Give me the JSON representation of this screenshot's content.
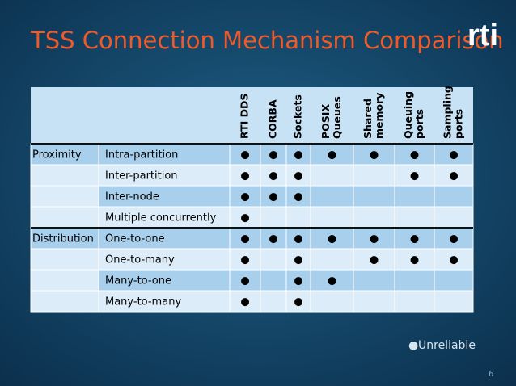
{
  "header": {
    "title": "TSS Connection Mechanism Comparison",
    "logo": "rti"
  },
  "table": {
    "columns": [
      [
        "RTI DDS"
      ],
      [
        "CORBA"
      ],
      [
        "Sockets"
      ],
      [
        "POSIX",
        "Queues"
      ],
      [
        "Shared",
        "memory"
      ],
      [
        "Queuing",
        "ports"
      ],
      [
        "Sampling",
        "ports"
      ]
    ],
    "rows": [
      {
        "group": "Proximity",
        "item": "Intra-partition",
        "cells": [
          "●",
          "●",
          "●",
          "●",
          "●",
          "●",
          "●"
        ]
      },
      {
        "group": null,
        "item": "Inter-partition",
        "cells": [
          "●",
          "●",
          "●",
          null,
          null,
          "●",
          "●"
        ]
      },
      {
        "group": null,
        "item": "Inter-node",
        "cells": [
          "●",
          "●",
          "●",
          null,
          null,
          null,
          null
        ]
      },
      {
        "group": null,
        "item": "Multiple concurrently",
        "cells": [
          "●",
          null,
          null,
          null,
          null,
          null,
          null
        ]
      },
      {
        "group": "Distribution",
        "item": "One-to-one",
        "cells": [
          "●",
          "●",
          "●",
          "●",
          "●",
          "●",
          "●"
        ]
      },
      {
        "group": null,
        "item": "One-to-many",
        "cells": [
          "●",
          null,
          {
            "text": "●",
            "unreliable": true
          },
          null,
          "●",
          "●",
          "●"
        ]
      },
      {
        "group": null,
        "item": "Many-to-one",
        "cells": [
          "●",
          null,
          {
            "text": "●",
            "unreliable": true
          },
          "●",
          null,
          null,
          null
        ]
      },
      {
        "group": null,
        "item": "Many-to-many",
        "cells": [
          "●",
          null,
          {
            "text": "●",
            "unreliable": true
          },
          null,
          null,
          null,
          null
        ]
      }
    ]
  },
  "legend": {
    "symbol": "●",
    "label": "Unreliable"
  },
  "footer": {
    "page_number": "6"
  }
}
